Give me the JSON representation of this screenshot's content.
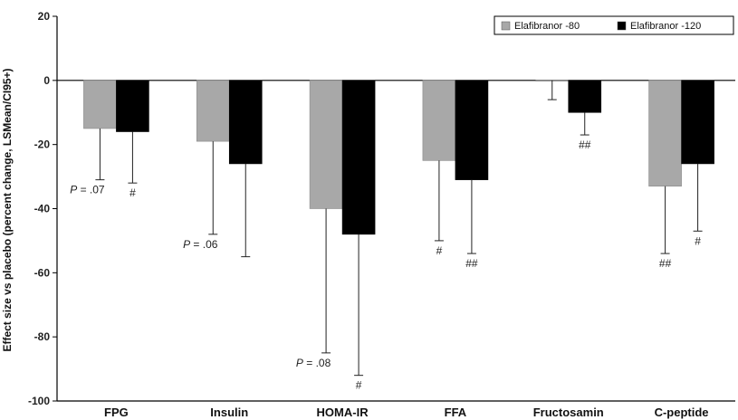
{
  "chart_data": {
    "type": "bar",
    "ylabel": "Effect size vs placebo (percent change, LSMean/CI95+)",
    "ylim": [
      -100,
      20
    ],
    "yticks": [
      20,
      0,
      -20,
      -40,
      -60,
      -80,
      -100
    ],
    "categories": [
      "FPG",
      "Insulin",
      "HOMA-IR",
      "FFA",
      "Fructosamin",
      "C-peptide"
    ],
    "series": [
      {
        "name": "Elafibranor -80",
        "color": "#a8a8a8",
        "values": [
          -15,
          -19,
          -40,
          -25,
          0,
          -33
        ],
        "ci_low": [
          -31,
          -48,
          -85,
          -50,
          -6,
          -54
        ],
        "annotations": [
          "P = .07",
          "P = .06",
          "P = .08",
          "#",
          "",
          "##"
        ]
      },
      {
        "name": "Elafibranor -120",
        "color": "#000000",
        "values": [
          -16,
          -26,
          -48,
          -31,
          -10,
          -26
        ],
        "ci_low": [
          -32,
          -55,
          -92,
          -54,
          -17,
          -47
        ],
        "annotations": [
          "#",
          "",
          "#",
          "##",
          "##",
          "#"
        ]
      }
    ],
    "legend_position": "top-right"
  }
}
